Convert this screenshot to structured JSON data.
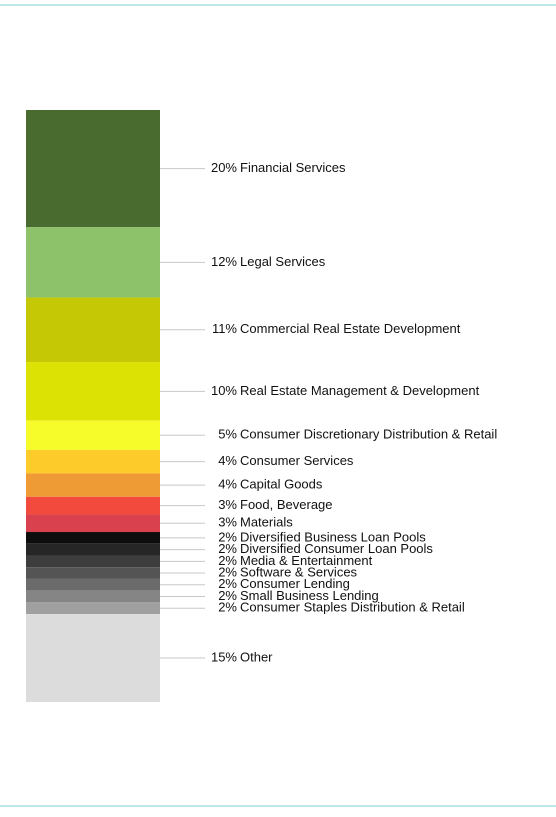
{
  "chart_data": {
    "type": "stacked-bar",
    "categories": [
      "Financial Services",
      "Legal Services",
      "Commercial Real Estate Development",
      "Real Estate Management & Development",
      "Consumer Discretionary Distribution & Retail",
      "Consumer Services",
      "Capital Goods",
      "Food, Beverage",
      "Materials",
      "Diversified Business Loan Pools",
      "Diversified Consumer Loan Pools",
      "Media & Entertainment",
      "Software & Services",
      "Consumer Lending",
      "Small Business Lending",
      "Consumer Staples Distribution & Retail",
      "Other"
    ],
    "values": [
      20,
      12,
      11,
      10,
      5,
      4,
      4,
      3,
      3,
      2,
      2,
      2,
      2,
      2,
      2,
      2,
      15
    ],
    "value_labels": [
      "20%",
      "12%",
      "11%",
      "10%",
      "5%",
      "4%",
      "4%",
      "3%",
      "3%",
      "2%",
      "2%",
      "2%",
      "2%",
      "2%",
      "2%",
      "2%",
      "15%"
    ],
    "colors": [
      "#4a6b2f",
      "#8dc26b",
      "#c5c805",
      "#dde205",
      "#f6fb2a",
      "#fdcb2a",
      "#ee9a35",
      "#f24b3e",
      "#d9414f",
      "#0d0d0d",
      "#262626",
      "#3d3d3d",
      "#545454",
      "#6b6b6b",
      "#858585",
      "#a0a0a0",
      "#dcdcdc"
    ]
  }
}
